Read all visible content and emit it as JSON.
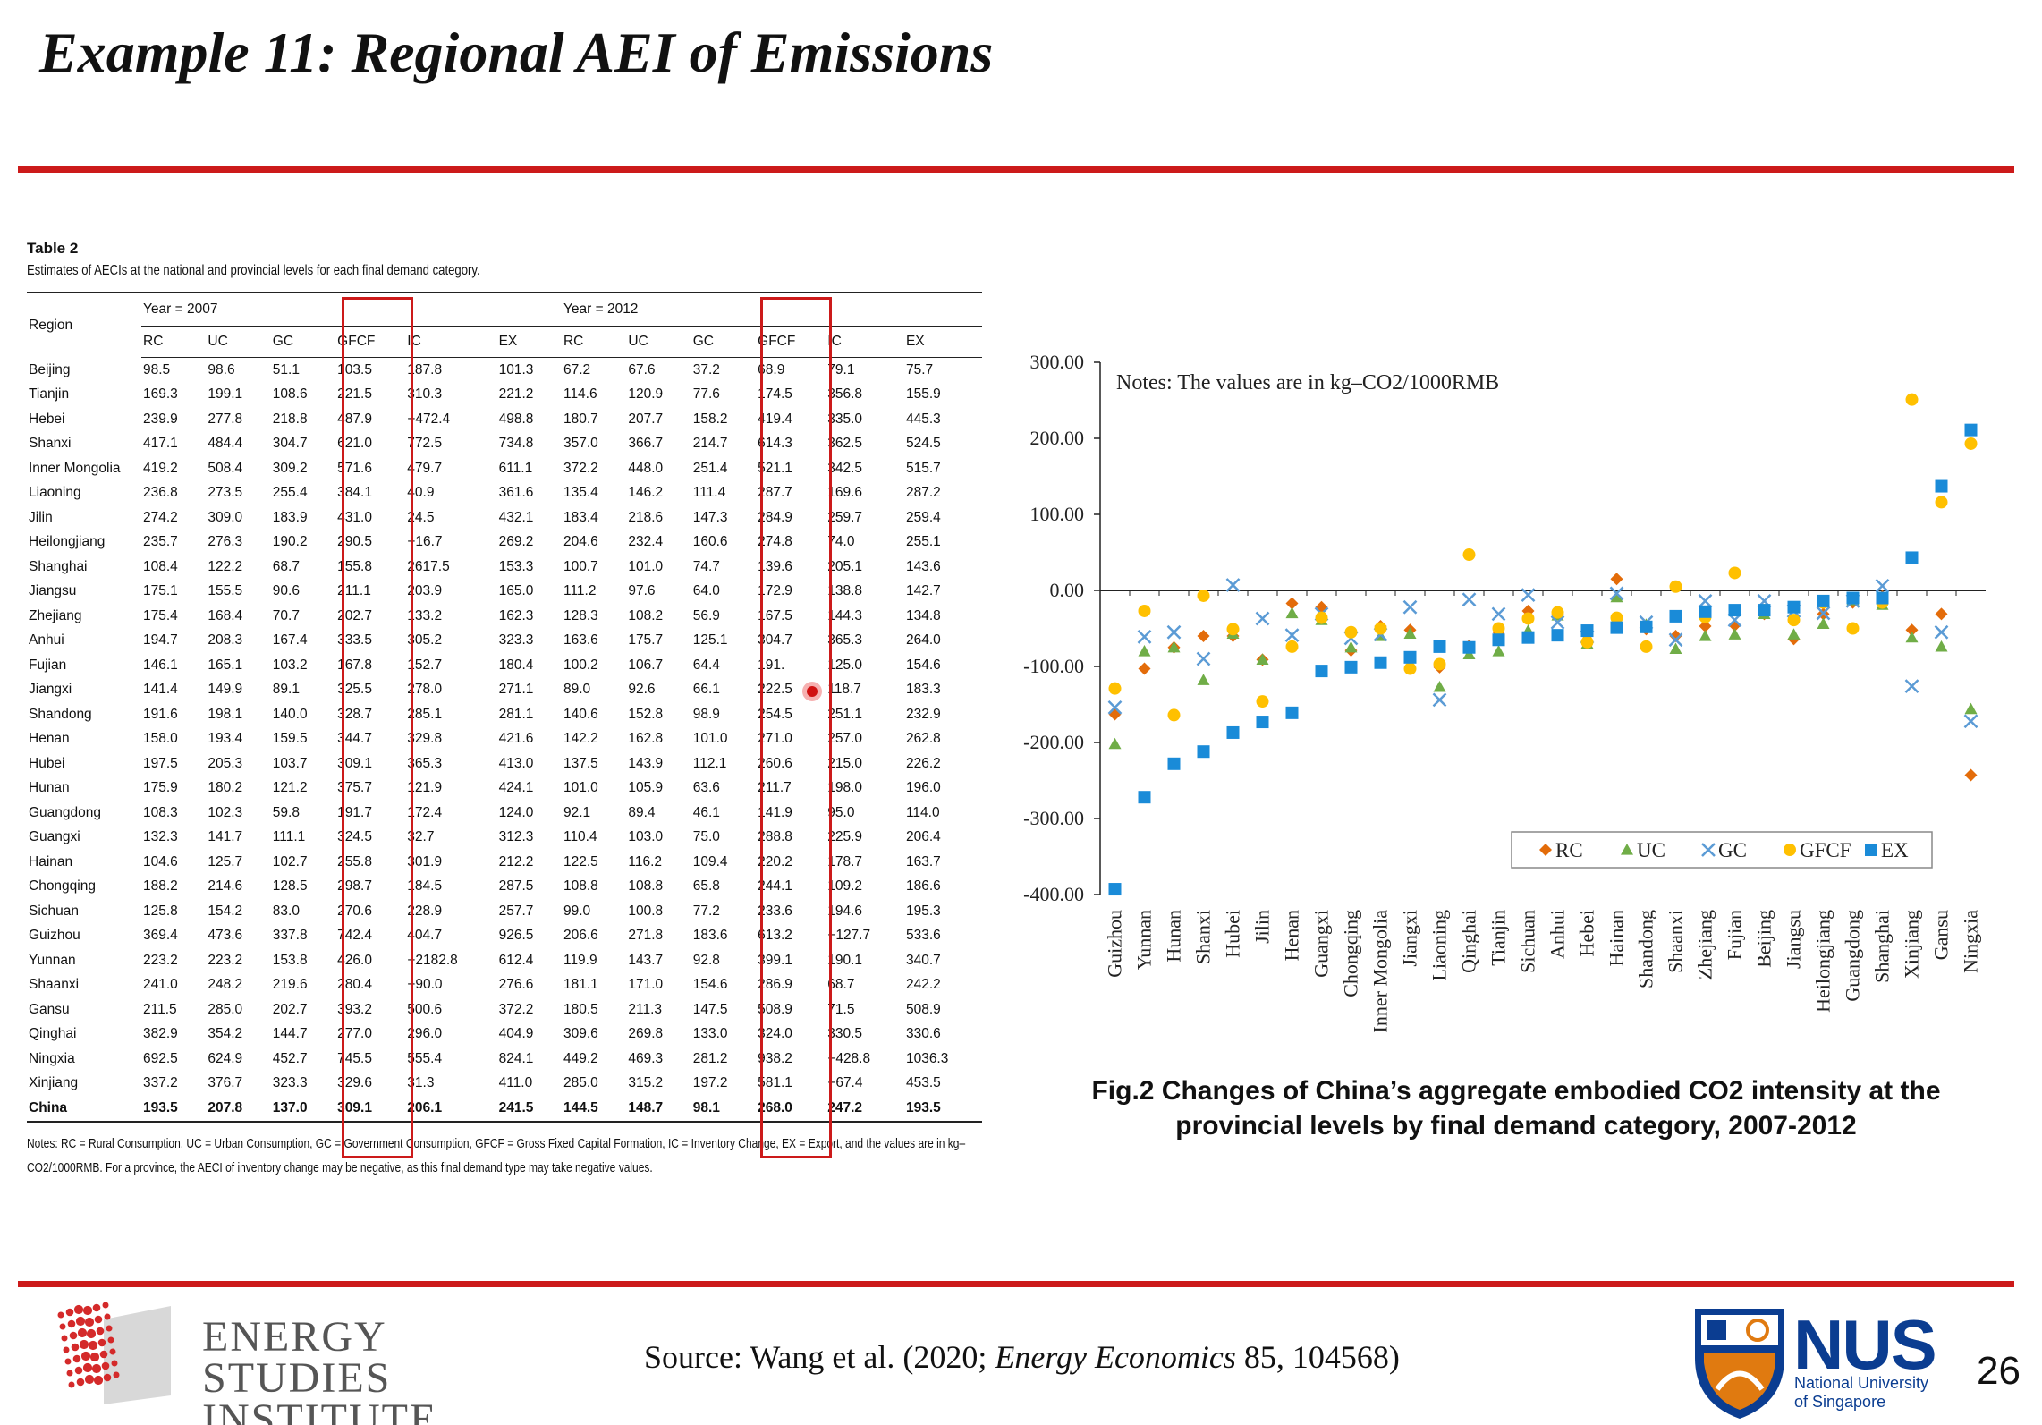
{
  "slide": {
    "title": "Example 11: Regional AEI of Emissions",
    "page_number": "26",
    "source_prefix": "Source: Wang et al. (2020; ",
    "source_journal": "Energy Economics",
    "source_suffix": " 85, 104568)",
    "accent_color": "#cc1a1a"
  },
  "table": {
    "caption_label": "Table 2",
    "caption_text": "Estimates of AECIs at the national and provincial levels for each final demand category.",
    "region_header": "Region",
    "year_2007": "Year = 2007",
    "year_2012": "Year = 2012",
    "columns": [
      "RC",
      "UC",
      "GC",
      "GFCF",
      "IC",
      "EX",
      "RC",
      "UC",
      "GC",
      "GFCF",
      "IC",
      "EX"
    ],
    "rows": [
      [
        "Beijing",
        "98.5",
        "98.6",
        "51.1",
        "103.5",
        "187.8",
        "101.3",
        "67.2",
        "67.6",
        "37.2",
        "68.9",
        "79.1",
        "75.7"
      ],
      [
        "Tianjin",
        "169.3",
        "199.1",
        "108.6",
        "221.5",
        "310.3",
        "221.2",
        "114.6",
        "120.9",
        "77.6",
        "174.5",
        "356.8",
        "155.9"
      ],
      [
        "Hebei",
        "239.9",
        "277.8",
        "218.8",
        "487.9",
        "−472.4",
        "498.8",
        "180.7",
        "207.7",
        "158.2",
        "419.4",
        "335.0",
        "445.3"
      ],
      [
        "Shanxi",
        "417.1",
        "484.4",
        "304.7",
        "621.0",
        "772.5",
        "734.8",
        "357.0",
        "366.7",
        "214.7",
        "614.3",
        "362.5",
        "524.5"
      ],
      [
        "Inner Mongolia",
        "419.2",
        "508.4",
        "309.2",
        "571.6",
        "479.7",
        "611.1",
        "372.2",
        "448.0",
        "251.4",
        "521.1",
        "342.5",
        "515.7"
      ],
      [
        "Liaoning",
        "236.8",
        "273.5",
        "255.4",
        "384.1",
        "40.9",
        "361.6",
        "135.4",
        "146.2",
        "111.4",
        "287.7",
        "169.6",
        "287.2"
      ],
      [
        "Jilin",
        "274.2",
        "309.0",
        "183.9",
        "431.0",
        "24.5",
        "432.1",
        "183.4",
        "218.6",
        "147.3",
        "284.9",
        "259.7",
        "259.4"
      ],
      [
        "Heilongjiang",
        "235.7",
        "276.3",
        "190.2",
        "290.5",
        "−16.7",
        "269.2",
        "204.6",
        "232.4",
        "160.6",
        "274.8",
        "74.0",
        "255.1"
      ],
      [
        "Shanghai",
        "108.4",
        "122.2",
        "68.7",
        "155.8",
        "2617.5",
        "153.3",
        "100.7",
        "101.0",
        "74.7",
        "139.6",
        "205.1",
        "143.6"
      ],
      [
        "Jiangsu",
        "175.1",
        "155.5",
        "90.6",
        "211.1",
        "203.9",
        "165.0",
        "111.2",
        "97.6",
        "64.0",
        "172.9",
        "138.8",
        "142.7"
      ],
      [
        "Zhejiang",
        "175.4",
        "168.4",
        "70.7",
        "202.7",
        "133.2",
        "162.3",
        "128.3",
        "108.2",
        "56.9",
        "167.5",
        "144.3",
        "134.8"
      ],
      [
        "Anhui",
        "194.7",
        "208.3",
        "167.4",
        "333.5",
        "305.2",
        "323.3",
        "163.6",
        "175.7",
        "125.1",
        "304.7",
        "365.3",
        "264.0"
      ],
      [
        "Fujian",
        "146.1",
        "165.1",
        "103.2",
        "167.8",
        "152.7",
        "180.4",
        "100.2",
        "106.7",
        "64.4",
        "191.",
        "125.0",
        "154.6"
      ],
      [
        "Jiangxi",
        "141.4",
        "149.9",
        "89.1",
        "325.5",
        "278.0",
        "271.1",
        "89.0",
        "92.6",
        "66.1",
        "222.5",
        "118.7",
        "183.3"
      ],
      [
        "Shandong",
        "191.6",
        "198.1",
        "140.0",
        "328.7",
        "285.1",
        "281.1",
        "140.6",
        "152.8",
        "98.9",
        "254.5",
        "251.1",
        "232.9"
      ],
      [
        "Henan",
        "158.0",
        "193.4",
        "159.5",
        "344.7",
        "329.8",
        "421.6",
        "142.2",
        "162.8",
        "101.0",
        "271.0",
        "257.0",
        "262.8"
      ],
      [
        "Hubei",
        "197.5",
        "205.3",
        "103.7",
        "309.1",
        "365.3",
        "413.0",
        "137.5",
        "143.9",
        "112.1",
        "260.6",
        "215.0",
        "226.2"
      ],
      [
        "Hunan",
        "175.9",
        "180.2",
        "121.2",
        "375.7",
        "121.9",
        "424.1",
        "101.0",
        "105.9",
        "63.6",
        "211.7",
        "198.0",
        "196.0"
      ],
      [
        "Guangdong",
        "108.3",
        "102.3",
        "59.8",
        "191.7",
        "172.4",
        "124.0",
        "92.1",
        "89.4",
        "46.1",
        "141.9",
        "95.0",
        "114.0"
      ],
      [
        "Guangxi",
        "132.3",
        "141.7",
        "111.1",
        "324.5",
        "32.7",
        "312.3",
        "110.4",
        "103.0",
        "75.0",
        "288.8",
        "225.9",
        "206.4"
      ],
      [
        "Hainan",
        "104.6",
        "125.7",
        "102.7",
        "255.8",
        "301.9",
        "212.2",
        "122.5",
        "116.2",
        "109.4",
        "220.2",
        "178.7",
        "163.7"
      ],
      [
        "Chongqing",
        "188.2",
        "214.6",
        "128.5",
        "298.7",
        "184.5",
        "287.5",
        "108.8",
        "108.8",
        "65.8",
        "244.1",
        "109.2",
        "186.6"
      ],
      [
        "Sichuan",
        "125.8",
        "154.2",
        "83.0",
        "270.6",
        "228.9",
        "257.7",
        "99.0",
        "100.8",
        "77.2",
        "233.6",
        "194.6",
        "195.3"
      ],
      [
        "Guizhou",
        "369.4",
        "473.6",
        "337.8",
        "742.4",
        "404.7",
        "926.5",
        "206.6",
        "271.8",
        "183.6",
        "613.2",
        "−127.7",
        "533.6"
      ],
      [
        "Yunnan",
        "223.2",
        "223.2",
        "153.8",
        "426.0",
        "−2182.8",
        "612.4",
        "119.9",
        "143.7",
        "92.8",
        "399.1",
        "190.1",
        "340.7"
      ],
      [
        "Shaanxi",
        "241.0",
        "248.2",
        "219.6",
        "280.4",
        "−90.0",
        "276.6",
        "181.1",
        "171.0",
        "154.6",
        "286.9",
        "68.7",
        "242.2"
      ],
      [
        "Gansu",
        "211.5",
        "285.0",
        "202.7",
        "393.2",
        "500.6",
        "372.2",
        "180.5",
        "211.3",
        "147.5",
        "508.9",
        "71.5",
        "508.9"
      ],
      [
        "Qinghai",
        "382.9",
        "354.2",
        "144.7",
        "277.0",
        "296.0",
        "404.9",
        "309.6",
        "269.8",
        "133.0",
        "324.0",
        "330.5",
        "330.6"
      ],
      [
        "Ningxia",
        "692.5",
        "624.9",
        "452.7",
        "745.5",
        "555.4",
        "824.1",
        "449.2",
        "469.3",
        "281.2",
        "938.2",
        "−428.8",
        "1036.3"
      ],
      [
        "Xinjiang",
        "337.2",
        "376.7",
        "323.3",
        "329.6",
        "31.3",
        "411.0",
        "285.0",
        "315.2",
        "197.2",
        "581.1",
        "−67.4",
        "453.5"
      ],
      [
        "China",
        "193.5",
        "207.8",
        "137.0",
        "309.1",
        "206.1",
        "241.5",
        "144.5",
        "148.7",
        "98.1",
        "268.0",
        "247.2",
        "193.5"
      ]
    ],
    "notes": "Notes: RC = Rural Consumption, UC = Urban Consumption, GC = Government Consumption, GFCF = Gross Fixed Capital Formation, IC = Inventory Change, EX = Export, and the values are in kg–CO2/1000RMB. For a province, the AECI of inventory change may be negative, as this final demand type may take negative values."
  },
  "chart_caption_line1": "Fig.2 Changes of China’s aggregate embodied CO2 intensity at the",
  "chart_caption_line2": "provincial levels by final demand category, 2007-2012",
  "chart_data": {
    "type": "scatter",
    "title": "",
    "note": "Notes: The values are in kg–CO2/1000RMB",
    "ylim": [
      -400,
      300
    ],
    "yticks": [
      "300.00",
      "200.00",
      "100.00",
      "0.00",
      "-100.00",
      "-200.00",
      "-300.00",
      "-400.00"
    ],
    "ytick_values": [
      300,
      200,
      100,
      0,
      -100,
      -200,
      -300,
      -400
    ],
    "categories": [
      "Guizhou",
      "Yunnan",
      "Hunan",
      "Shanxi",
      "Hubei",
      "Jilin",
      "Henan",
      "Guangxi",
      "Chongqing",
      "Inner Mongolia",
      "Jiangxi",
      "Liaoning",
      "Qinghai",
      "Tianjin",
      "Sichuan",
      "Anhui",
      "Hebei",
      "Hainan",
      "Shandong",
      "Shaanxi",
      "Zhejiang",
      "Fujian",
      "Beijing",
      "Jiangsu",
      "Heilongjiang",
      "Guangdong",
      "Shanghai",
      "Xinjiang",
      "Gansu",
      "Ningxia"
    ],
    "legend_position": "bottom-right",
    "series": [
      {
        "name": "RC",
        "color": "#e36c0a",
        "marker": "diamond",
        "values": [
          -163,
          -103,
          -75,
          -60,
          -60,
          -91,
          -17,
          -22,
          -79,
          -47,
          -52,
          -101,
          -73,
          -55,
          -27,
          -31,
          -59,
          15,
          -51,
          -60,
          -47,
          -46,
          -31,
          -64,
          -31,
          -16,
          -8,
          -52,
          -31,
          -243
        ]
      },
      {
        "name": "UC",
        "color": "#70ad47",
        "marker": "triangle",
        "values": [
          -202,
          -80,
          -75,
          -118,
          -57,
          -91,
          -30,
          -39,
          -75,
          -60,
          -57,
          -127,
          -84,
          -80,
          -53,
          -33,
          -70,
          -9,
          -45,
          -77,
          -60,
          -58,
          -31,
          -58,
          -44,
          -13,
          -19,
          -62,
          -74,
          -156
        ]
      },
      {
        "name": "GC",
        "color": "#5b9bd5",
        "marker": "x",
        "values": [
          -154,
          -61,
          -55,
          -90,
          7,
          -37,
          -59,
          -31,
          -63,
          -58,
          -22,
          -144,
          -12,
          -31,
          -6,
          -42,
          -61,
          -4,
          -42,
          -65,
          -14,
          -39,
          -14,
          -27,
          -30,
          -14,
          6,
          -126,
          -55,
          -172
        ]
      },
      {
        "name": "GFCF",
        "color": "#ffc000",
        "marker": "circle",
        "values": [
          -129,
          -27,
          -164,
          -7,
          -51,
          -146,
          -74,
          -36,
          -55,
          -50,
          -103,
          -97,
          47,
          -50,
          -37,
          -29,
          -68,
          -36,
          -74,
          5,
          -35,
          23,
          -26,
          -39,
          -16,
          -50,
          -16,
          251,
          116,
          193
        ]
      },
      {
        "name": "EX",
        "color": "#1a8bd8",
        "marker": "square",
        "values": [
          -393,
          -272,
          -228,
          -212,
          -187,
          -173,
          -161,
          -106,
          -101,
          -95,
          -88,
          -74,
          -75,
          -65,
          -62,
          -59,
          -53,
          -49,
          -48,
          -34,
          -28,
          -26,
          -26,
          -22,
          -14,
          -10,
          -10,
          43,
          137,
          211
        ]
      }
    ]
  },
  "energy_logo": {
    "line1": "ENERGY",
    "line2": "STUDIES",
    "line3": "INSTITUTE"
  },
  "nus_logo": {
    "big": "NUS",
    "line1": "National University",
    "line2": "of Singapore"
  }
}
